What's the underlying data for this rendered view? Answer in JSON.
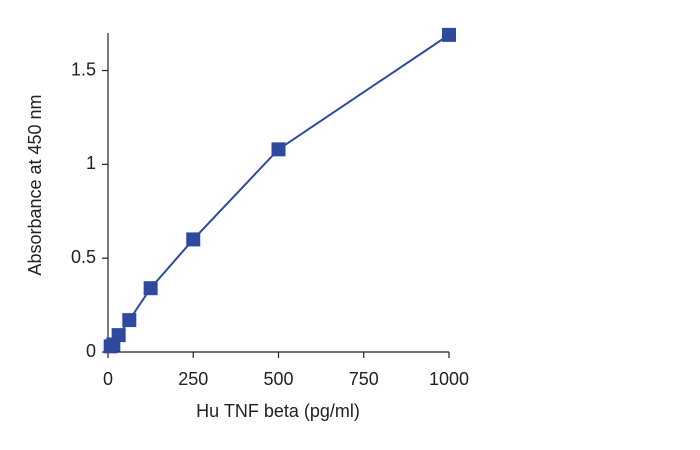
{
  "chart_data": {
    "type": "line",
    "x_label": "Hu TNF beta (pg/ml)",
    "y_label": "Absorbance at 450 nm",
    "x": [
      7.8,
      15.6,
      31.25,
      62.5,
      125,
      250,
      500,
      1000
    ],
    "series": [
      {
        "color": "#2e4a9e",
        "values": [
          0.03,
          0.04,
          0.09,
          0.17,
          0.34,
          0.6,
          1.08,
          1.69
        ]
      }
    ],
    "xlim": [
      0,
      1000
    ],
    "xticks": [
      0,
      250,
      500,
      750,
      1000
    ],
    "ylim": [
      0,
      1.7
    ],
    "yticks": [
      0,
      0.5,
      1,
      1.5
    ],
    "grid": false
  }
}
